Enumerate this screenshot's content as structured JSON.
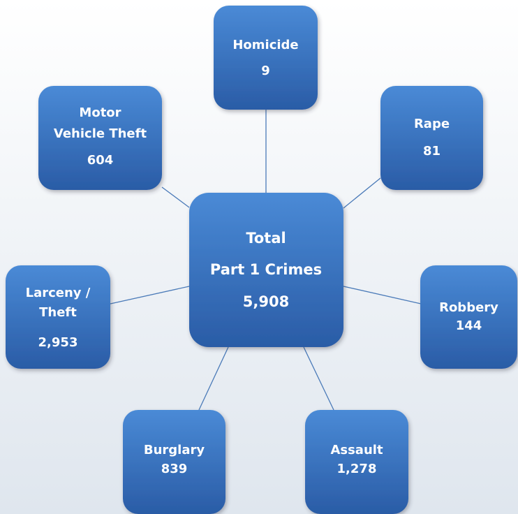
{
  "center": {
    "label": [
      "Total",
      "Part 1 Crimes"
    ],
    "value": "5,908"
  },
  "nodes": [
    {
      "label": [
        "Homicide"
      ],
      "value": "9"
    },
    {
      "label": [
        "Rape"
      ],
      "value": "81"
    },
    {
      "label": [
        "Robbery"
      ],
      "value": "144"
    },
    {
      "label": [
        "Assault"
      ],
      "value": "1,278"
    },
    {
      "label": [
        "Burglary"
      ],
      "value": "839"
    },
    {
      "label": [
        "Larceny /",
        "Theft"
      ],
      "value": "2,953"
    },
    {
      "label": [
        "Motor",
        "Vehicle Theft"
      ],
      "value": "604"
    }
  ]
}
